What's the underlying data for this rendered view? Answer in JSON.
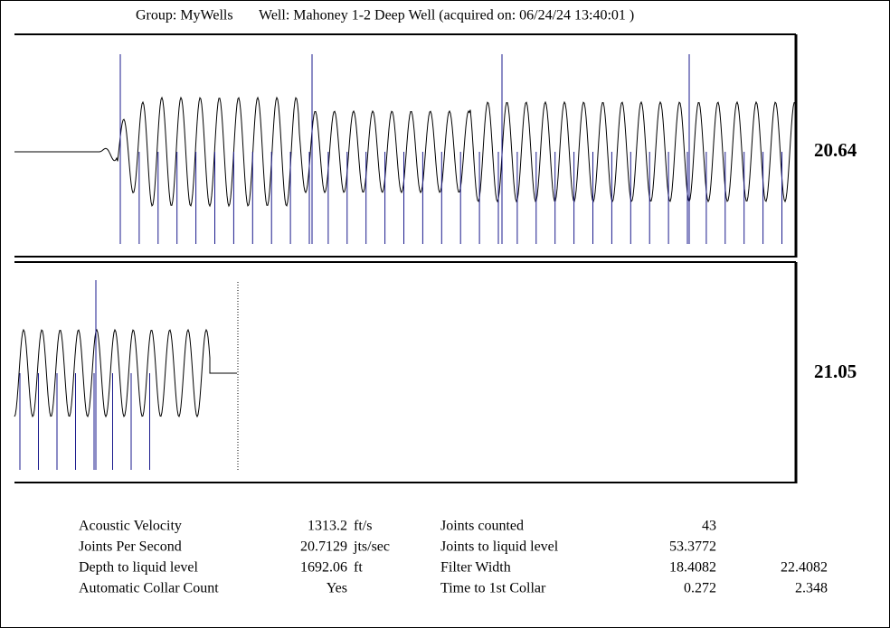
{
  "header": {
    "group": "Group: MyWells",
    "well": "Well: Mahoney 1-2 Deep Well (acquired on: 06/24/24 13:40:01 )"
  },
  "panels": [
    {
      "label": "20.64"
    },
    {
      "label": "21.05"
    }
  ],
  "table": {
    "rows": [
      {
        "label1": "Acoustic Velocity",
        "value1": "1313.2",
        "unit1": "ft/s",
        "label2": "Joints counted",
        "value2": "43"
      },
      {
        "label1": "Joints Per Second",
        "value1": "20.7129",
        "unit1": "jts/sec",
        "label2": "Joints to liquid level",
        "value2": "53.3772"
      },
      {
        "label1": "Depth to liquid level",
        "value1": "1692.06",
        "unit1": "ft",
        "label2": "Filter Width",
        "value2": "18.4082",
        "value3": "22.4082"
      },
      {
        "label1": "Automatic Collar Count",
        "value1": "Yes",
        "label2": "Time to 1st Collar",
        "value2": "0.272",
        "value3": "2.348"
      }
    ]
  }
}
